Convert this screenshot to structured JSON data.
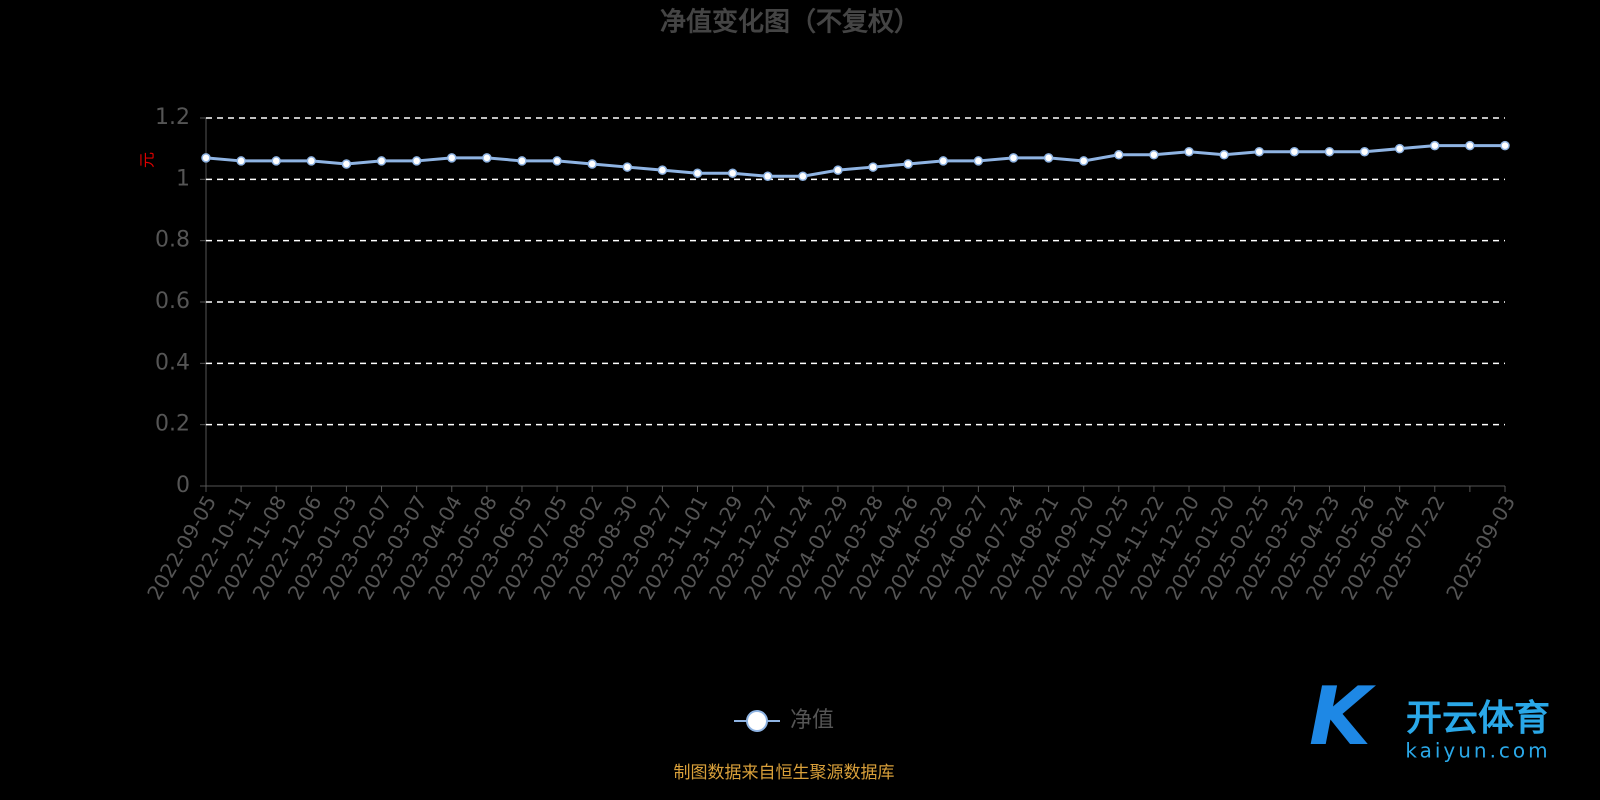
{
  "chart_data": {
    "type": "line",
    "title": "净值变化图（不复权）",
    "y_label": "元",
    "categories": [
      "2022-09-05",
      "2022-10-11",
      "2022-11-08",
      "2022-12-06",
      "2023-01-03",
      "2023-02-07",
      "2023-03-07",
      "2023-04-04",
      "2023-05-08",
      "2023-06-05",
      "2023-07-05",
      "2023-08-02",
      "2023-08-30",
      "2023-09-27",
      "2023-11-01",
      "2023-11-29",
      "2023-12-27",
      "2024-01-24",
      "2024-02-29",
      "2024-03-28",
      "2024-04-26",
      "2024-05-29",
      "2024-06-27",
      "2024-07-24",
      "2024-08-21",
      "2024-09-20",
      "2024-10-25",
      "2024-11-22",
      "2024-12-20",
      "2025-01-20",
      "2025-02-25",
      "2025-03-25",
      "2025-04-23",
      "2025-05-26",
      "2025-06-24",
      "2025-07-22",
      null,
      "2025-09-03"
    ],
    "series": [
      {
        "name": "净值",
        "color": "#8fb4e3",
        "values": [
          1.07,
          1.06,
          1.06,
          1.06,
          1.05,
          1.06,
          1.06,
          1.07,
          1.07,
          1.06,
          1.06,
          1.05,
          1.04,
          1.03,
          1.02,
          1.02,
          1.01,
          1.01,
          1.03,
          1.04,
          1.05,
          1.06,
          1.06,
          1.07,
          1.07,
          1.06,
          1.08,
          1.08,
          1.09,
          1.08,
          1.09,
          1.09,
          1.09,
          1.09,
          1.1,
          1.11,
          1.11,
          1.11
        ]
      }
    ],
    "ylim": [
      0,
      1.2
    ],
    "yticks": [
      0,
      0.2,
      0.4,
      0.6,
      0.8,
      1,
      1.2
    ],
    "grid": true,
    "source": "制图数据来自恒生聚源数据库",
    "watermark": {
      "name": "开云体育",
      "url": "kaiyun.com"
    }
  }
}
